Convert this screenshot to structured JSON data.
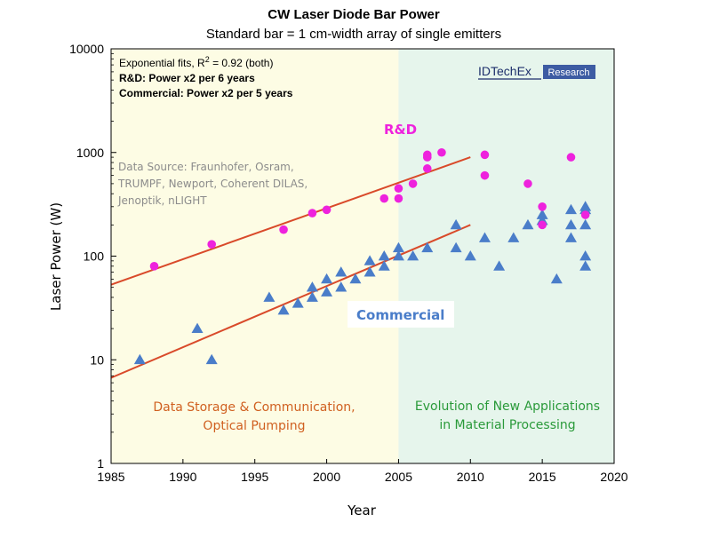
{
  "chart_data": {
    "type": "scatter",
    "title": "CW Laser Diode Bar Power",
    "subtitle": "Standard bar = 1 cm-width array of single emitters",
    "xlabel": "Year",
    "ylabel": "Laser Power (W)",
    "y_scale": "log",
    "xlim": [
      1985,
      2020
    ],
    "ylim": [
      1,
      10000
    ],
    "x_ticks": [
      "1985",
      "1990",
      "1995",
      "2000",
      "2005",
      "2010",
      "2015",
      "2020"
    ],
    "y_ticks": [
      "1",
      "10",
      "100",
      "1000",
      "10000"
    ],
    "grid": false,
    "annotations": {
      "fit_line1": "Exponential fits, R",
      "fit_sup": "2",
      "fit_line1b": " = 0.92 (both)",
      "fit_line2": "R&D: Power x2 per 6 years",
      "fit_line3": "Commercial: Power x2 per 5 years",
      "source_line1": "Data Source: Fraunhofer, Osram,",
      "source_line2": "TRUMPF, Newport, Coherent DILAS,",
      "source_line3": "Jenoptik, nLIGHT",
      "region_left_line1": "Data Storage & Communication,",
      "region_left_line2": "Optical Pumping",
      "region_right_line1": "Evolution of New Applications",
      "region_right_line2": "in Material Processing",
      "logo_main": "IDTechEx",
      "logo_badge": "Research"
    },
    "regions": [
      {
        "x_from": 1985,
        "x_to": 2005,
        "color": "#fdfce4"
      },
      {
        "x_from": 2005,
        "x_to": 2020,
        "color": "#e6f5ec"
      }
    ],
    "series": [
      {
        "name": "R&D",
        "marker": "circle",
        "color": "#ee22dd",
        "points": [
          [
            1988,
            80
          ],
          [
            1992,
            130
          ],
          [
            1997,
            180
          ],
          [
            1999,
            260
          ],
          [
            2000,
            280
          ],
          [
            2004,
            360
          ],
          [
            2005,
            360
          ],
          [
            2005,
            450
          ],
          [
            2006,
            500
          ],
          [
            2007,
            700
          ],
          [
            2007,
            900
          ],
          [
            2007,
            950
          ],
          [
            2008,
            1000
          ],
          [
            2011,
            950
          ],
          [
            2011,
            600
          ],
          [
            2014,
            500
          ],
          [
            2015,
            300
          ],
          [
            2015,
            200
          ],
          [
            2017,
            900
          ],
          [
            2018,
            250
          ]
        ],
        "fit": {
          "from": [
            1985,
            53
          ],
          "to": [
            2010,
            900
          ],
          "color": "#d94a2a"
        }
      },
      {
        "name": "Commercial",
        "marker": "triangle",
        "color": "#4a7dc9",
        "points": [
          [
            1987,
            10
          ],
          [
            1991,
            20
          ],
          [
            1992,
            10
          ],
          [
            1996,
            40
          ],
          [
            1997,
            30
          ],
          [
            1998,
            35
          ],
          [
            1999,
            40
          ],
          [
            1999,
            50
          ],
          [
            2000,
            45
          ],
          [
            2000,
            60
          ],
          [
            2001,
            50
          ],
          [
            2001,
            70
          ],
          [
            2002,
            60
          ],
          [
            2003,
            70
          ],
          [
            2003,
            90
          ],
          [
            2004,
            80
          ],
          [
            2004,
            100
          ],
          [
            2005,
            100
          ],
          [
            2005,
            120
          ],
          [
            2006,
            100
          ],
          [
            2007,
            120
          ],
          [
            2009,
            120
          ],
          [
            2009,
            200
          ],
          [
            2010,
            100
          ],
          [
            2011,
            150
          ],
          [
            2012,
            80
          ],
          [
            2013,
            150
          ],
          [
            2014,
            200
          ],
          [
            2015,
            220
          ],
          [
            2015,
            250
          ],
          [
            2016,
            60
          ],
          [
            2017,
            150
          ],
          [
            2017,
            200
          ],
          [
            2017,
            280
          ],
          [
            2018,
            80
          ],
          [
            2018,
            100
          ],
          [
            2018,
            200
          ],
          [
            2018,
            280
          ],
          [
            2018,
            300
          ]
        ],
        "fit": {
          "from": [
            1985,
            6.7
          ],
          "to": [
            2010,
            200
          ],
          "color": "#d94a2a"
        }
      }
    ]
  }
}
